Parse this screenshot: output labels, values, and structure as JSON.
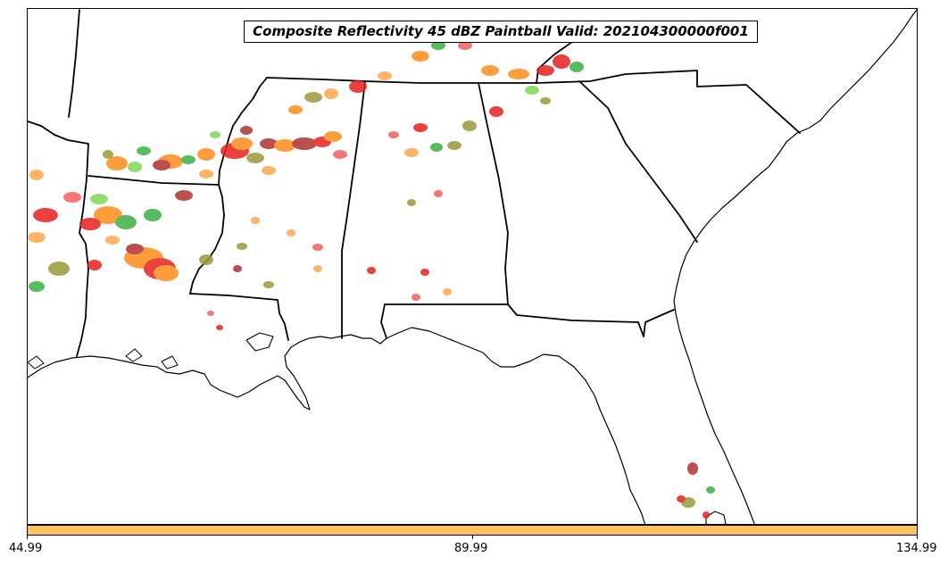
{
  "title": "Composite Reflectivity 45 dBZ Paintball Valid: 202104300000f001",
  "colorbar": {
    "color": "#ffc060",
    "ticks": [
      "44.99",
      "89.99",
      "134.99"
    ]
  },
  "palette": {
    "red": "#e8211d",
    "light-red": "#f26060",
    "orange": "#ff8c1a",
    "light-orange": "#ffa64d",
    "green": "#3cb043",
    "light-green": "#7ed957",
    "olive": "#9a9a3a",
    "dark-red": "#b03030"
  }
}
